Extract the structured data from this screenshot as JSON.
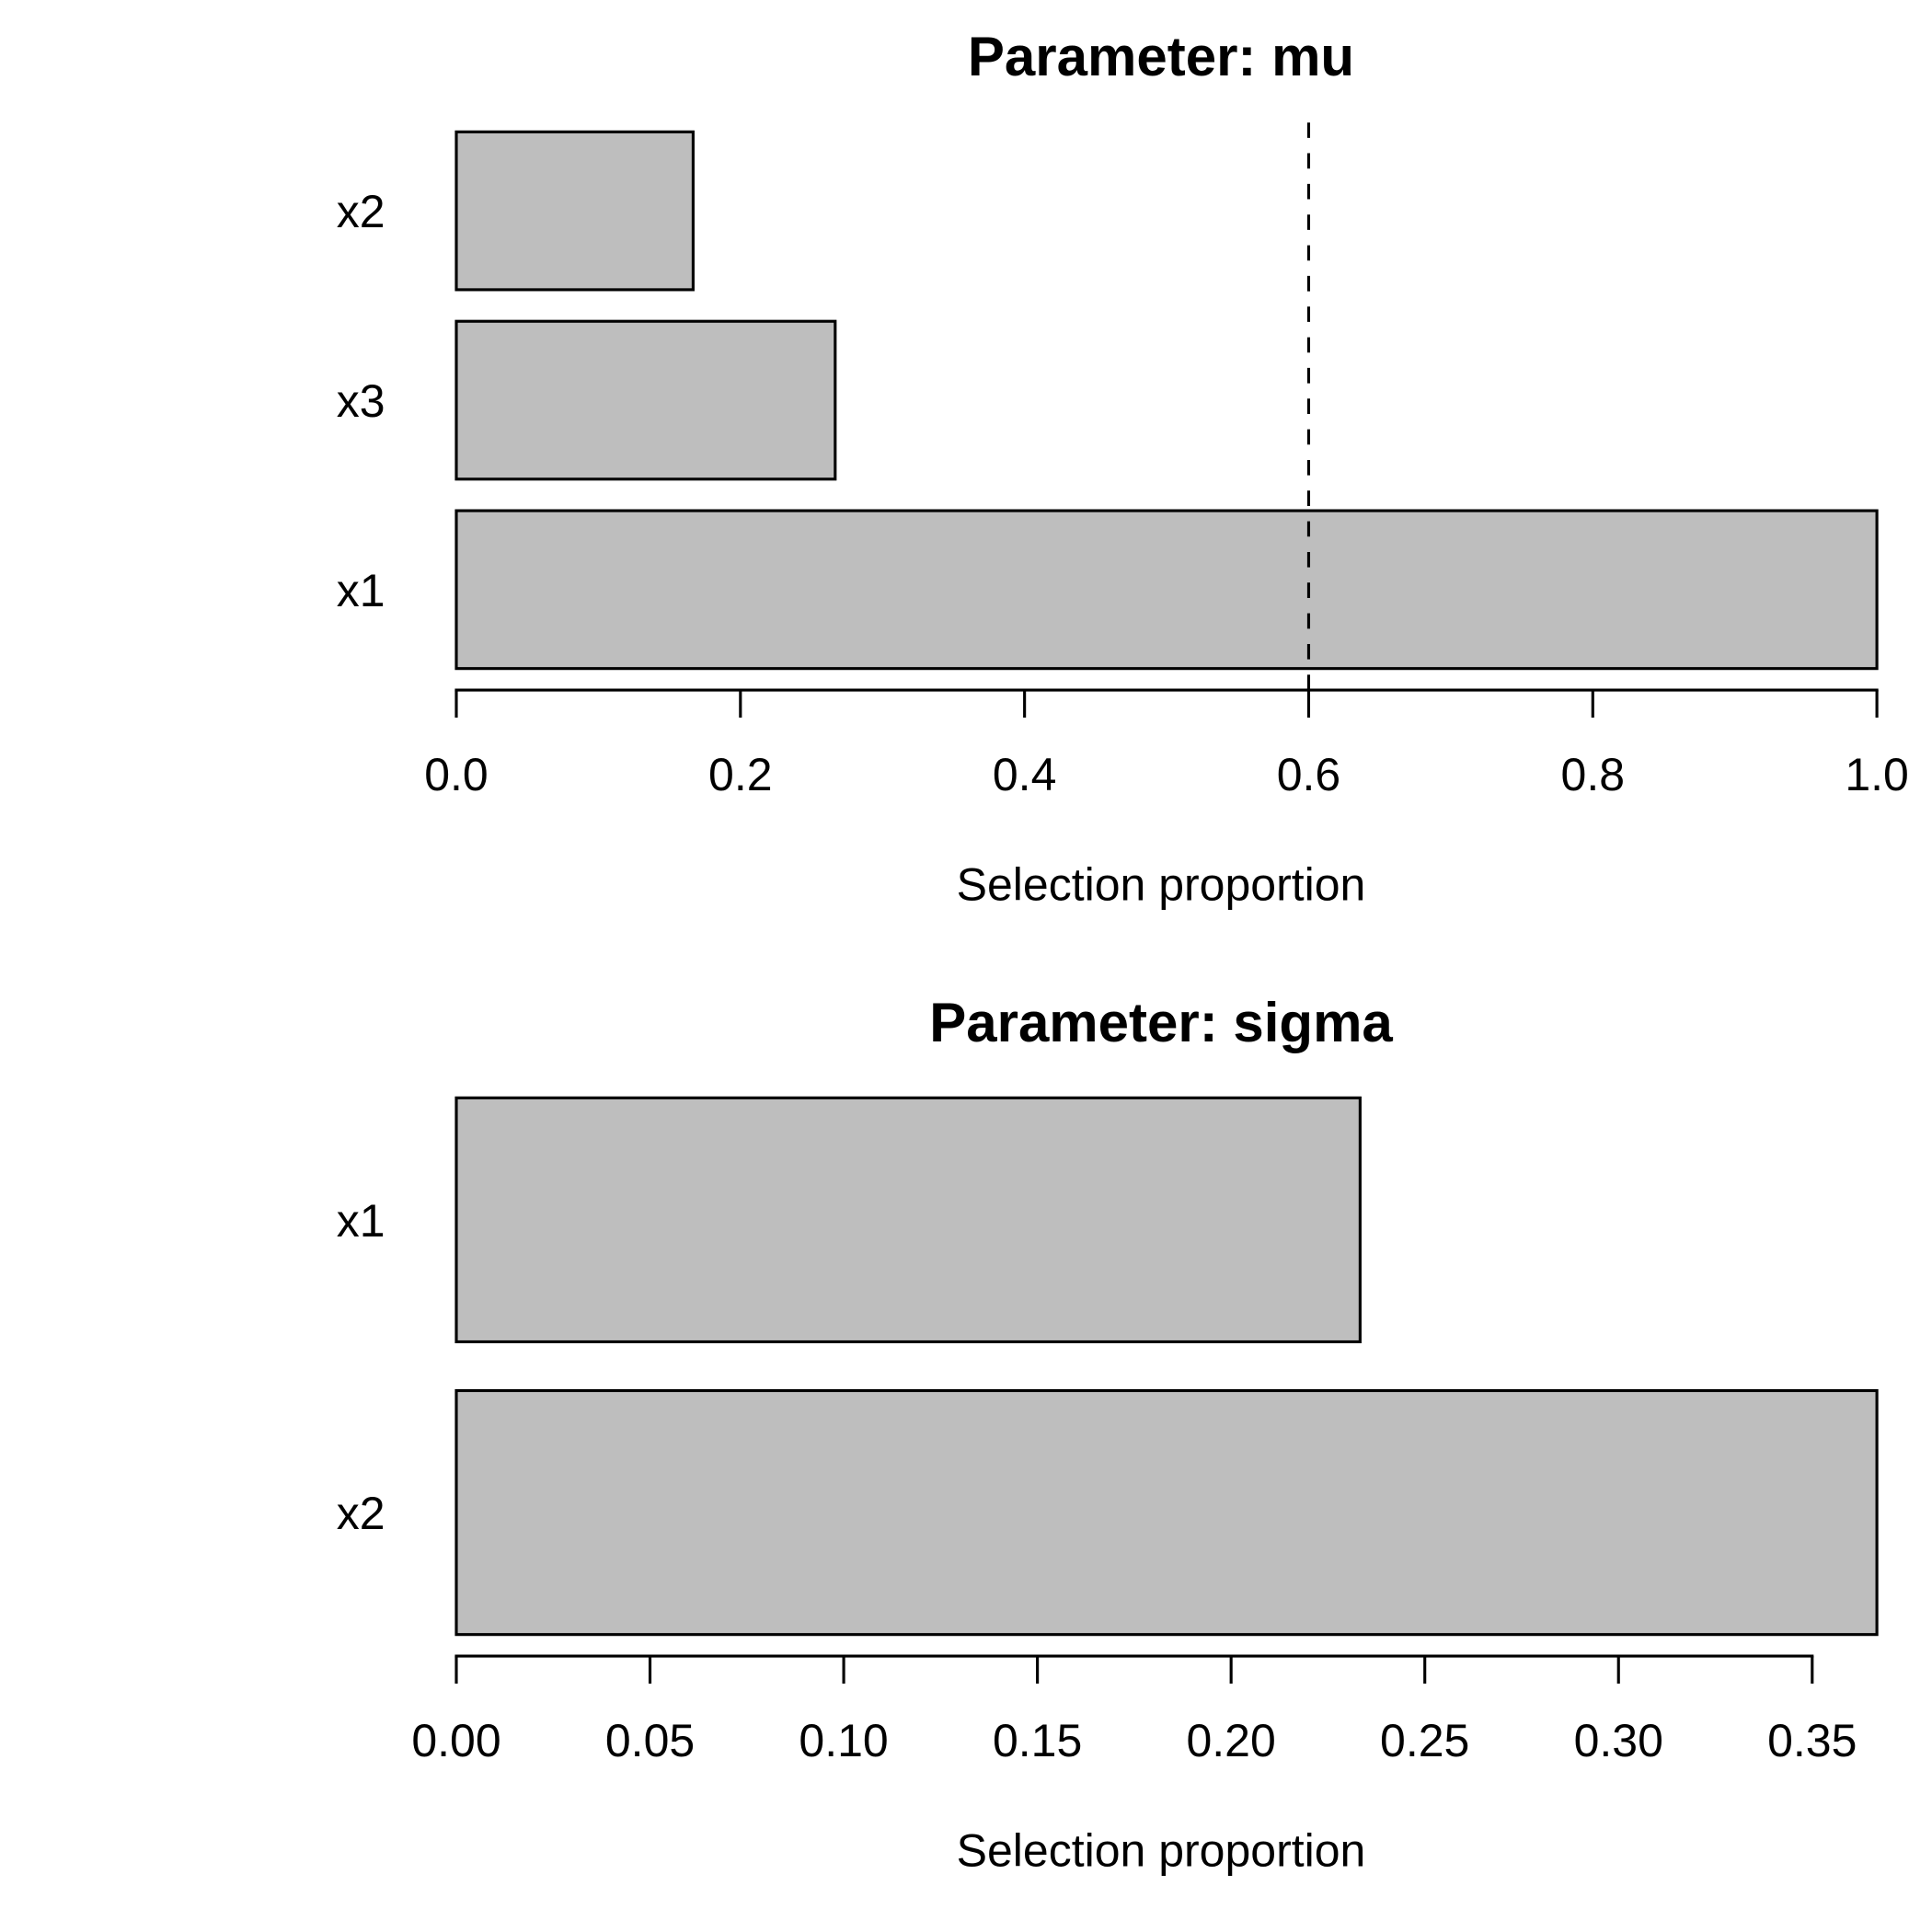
{
  "page": {
    "background": "#ffffff"
  },
  "style": {
    "bar_fill": "#BEBEBE",
    "bar_stroke": "#000000",
    "axis_color": "#000000",
    "text_color": "#000000",
    "threshold_line_style": "dashed"
  },
  "chart_data": [
    {
      "type": "bar",
      "orientation": "horizontal",
      "title": "Parameter: mu",
      "xlabel": "Selection proportion",
      "ylabel": "",
      "categories": [
        "x2",
        "x3",
        "x1"
      ],
      "values": [
        0.1667,
        0.2667,
        1.0
      ],
      "xlim": [
        0,
        1.0
      ],
      "ticks": [
        0,
        0.2,
        0.4,
        0.6,
        0.8,
        1.0
      ],
      "tick_labels": [
        "0.0",
        "0.2",
        "0.4",
        "0.6",
        "0.8",
        "1.0"
      ],
      "threshold": 0.6,
      "grid": false,
      "legend": null
    },
    {
      "type": "bar",
      "orientation": "horizontal",
      "title": "Parameter: sigma",
      "xlabel": "Selection proportion",
      "ylabel": "",
      "categories": [
        "x1",
        "x2"
      ],
      "values": [
        0.2333,
        0.3667
      ],
      "xlim": [
        0,
        0.3667
      ],
      "ticks": [
        0,
        0.05,
        0.1,
        0.15,
        0.2,
        0.25,
        0.3,
        0.35
      ],
      "tick_labels": [
        "0.00",
        "0.05",
        "0.10",
        "0.15",
        "0.20",
        "0.25",
        "0.30",
        "0.35"
      ],
      "threshold": null,
      "grid": false,
      "legend": null
    }
  ]
}
